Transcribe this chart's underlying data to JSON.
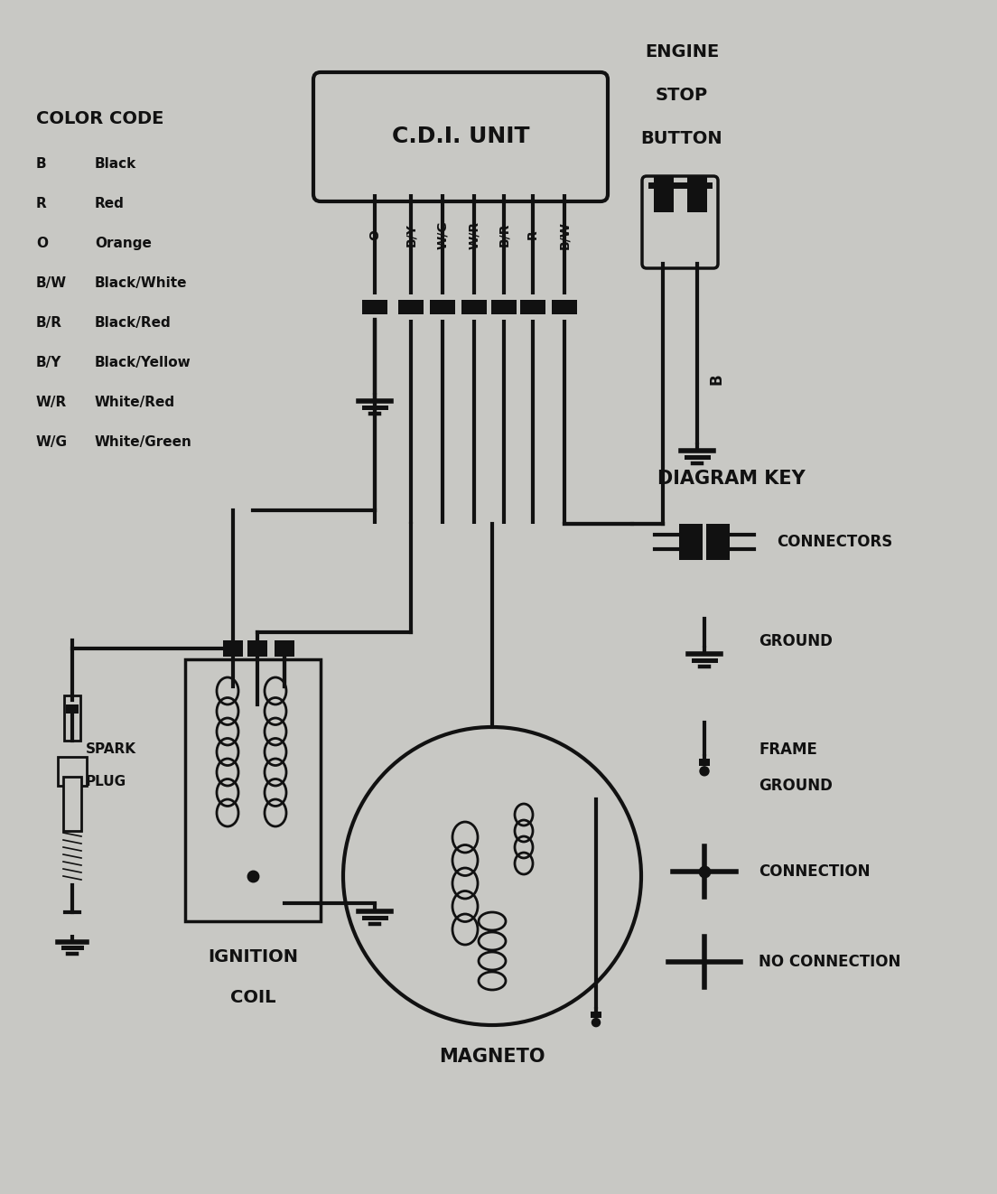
{
  "bg_color": "#c8c8c4",
  "line_color": "#111111",
  "color_code_title": "COLOR CODE",
  "color_codes": [
    [
      "B",
      "Black"
    ],
    [
      "R",
      "Red"
    ],
    [
      "O",
      "Orange"
    ],
    [
      "B/W",
      "Black/White"
    ],
    [
      "B/R",
      "Black/Red"
    ],
    [
      "B/Y",
      "Black/Yellow"
    ],
    [
      "W/R",
      "White/Red"
    ],
    [
      "W/G",
      "White/Green"
    ]
  ],
  "cdi_label": "C.D.I. UNIT",
  "wire_labels": [
    "O",
    "B/Y",
    "W/G",
    "W/R",
    "B/R",
    "R",
    "B/W"
  ],
  "engine_stop_label": [
    "ENGINE",
    "STOP",
    "BUTTON"
  ],
  "engine_stop_wire": "B",
  "diagram_key_title": "DIAGRAM KEY",
  "diagram_key_items": [
    "CONNECTORS",
    "GROUND",
    "FRAME\nGROUND",
    "CONNECTION",
    "NO CONNECTION"
  ],
  "ignition_coil_label": [
    "IGNITION",
    "COIL"
  ],
  "magneto_label": "MAGNETO",
  "spark_plug_label": [
    "SPARK",
    "PLUG"
  ]
}
